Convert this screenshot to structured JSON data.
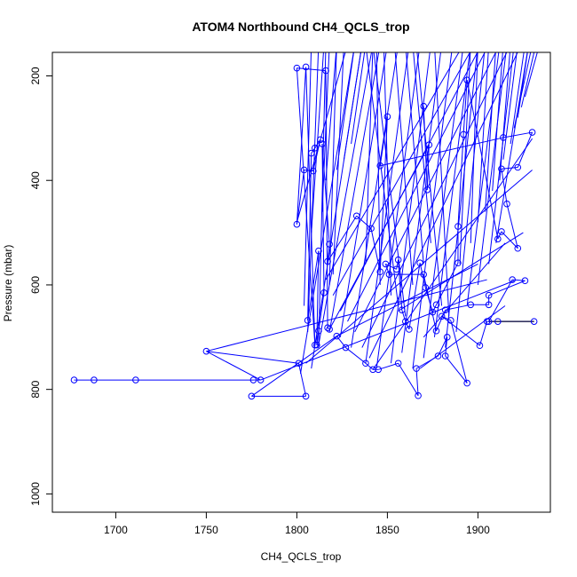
{
  "chart_data": {
    "type": "line",
    "title": "ATOM4 Northbound CH4_QCLS_trop",
    "xlabel": "CH4_QCLS_trop",
    "ylabel": "Pressure (mbar)",
    "xlim": [
      1665,
      1940
    ],
    "ylim": [
      1035,
      155
    ],
    "y_inverted": true,
    "x_ticks": [
      "1700",
      "1750",
      "1800",
      "1850",
      "1900"
    ],
    "y_ticks": [
      "200",
      "400",
      "600",
      "800",
      "1000"
    ],
    "grid": false,
    "colors": {
      "series": "#0000ff",
      "axes": "#000000",
      "connector": "#000000"
    },
    "series": [
      {
        "points": [
          [
            1677,
            782
          ],
          [
            1688,
            782
          ],
          [
            1711,
            782
          ],
          [
            1776,
            782
          ],
          [
            1780,
            782
          ],
          [
            1750,
            727
          ],
          [
            1801,
            750
          ],
          [
            1805,
            813
          ],
          [
            1775,
            813
          ],
          [
            1822,
            698
          ],
          [
            1827,
            720
          ],
          [
            1838,
            750
          ],
          [
            1842,
            762
          ],
          [
            1845,
            762
          ],
          [
            1856,
            750
          ],
          [
            1867,
            812
          ],
          [
            1866,
            760
          ],
          [
            1878,
            736
          ],
          [
            1883,
            700
          ],
          [
            1882,
            736
          ],
          [
            1894,
            788
          ],
          [
            1885,
            668
          ],
          [
            1880,
            660
          ],
          [
            1901,
            716
          ],
          [
            1905,
            670
          ],
          [
            1911,
            670
          ],
          [
            1931,
            670
          ],
          [
            1906,
            670
          ],
          [
            1919,
            590
          ],
          [
            1926,
            592
          ],
          [
            1906,
            620
          ],
          [
            1906,
            638
          ],
          [
            1896,
            638
          ],
          [
            1882,
            648
          ],
          [
            1877,
            688
          ],
          [
            1870,
            580
          ],
          [
            1851,
            580
          ],
          [
            1849,
            560
          ],
          [
            1855,
            570
          ],
          [
            1856,
            552
          ],
          [
            1858,
            648
          ],
          [
            1860,
            670
          ],
          [
            1862,
            685
          ],
          [
            1868,
            558
          ],
          [
            1871,
            605
          ],
          [
            1875,
            652
          ],
          [
            1877,
            638
          ],
          [
            1889,
            558
          ],
          [
            1889,
            488
          ],
          [
            1892,
            312
          ],
          [
            1894,
            208
          ],
          [
            1911,
            512
          ],
          [
            1913,
            498
          ],
          [
            1922,
            530
          ],
          [
            1916,
            445
          ],
          [
            1913,
            378
          ],
          [
            1922,
            375
          ],
          [
            1930,
            308
          ],
          [
            1914,
            318
          ],
          [
            1846,
            372
          ],
          [
            1850,
            278
          ],
          [
            1846,
            575
          ],
          [
            1841,
            492
          ],
          [
            1833,
            468
          ],
          [
            1817,
            555
          ],
          [
            1818,
            522
          ],
          [
            1814,
            330
          ],
          [
            1815,
            615
          ],
          [
            1812,
            688
          ],
          [
            1811,
            715
          ],
          [
            1812,
            535
          ],
          [
            1806,
            668
          ],
          [
            1808,
            348
          ],
          [
            1810,
            338
          ],
          [
            1813,
            322
          ],
          [
            1809,
            382
          ],
          [
            1804,
            380
          ],
          [
            1800,
            484
          ],
          [
            1805,
            183
          ],
          [
            1810,
            715
          ],
          [
            1800,
            185
          ],
          [
            1816,
            190
          ],
          [
            1817,
            682
          ],
          [
            1818,
            685
          ],
          [
            1873,
            332
          ],
          [
            1872,
            418
          ],
          [
            1870,
            258
          ]
        ]
      }
    ]
  }
}
